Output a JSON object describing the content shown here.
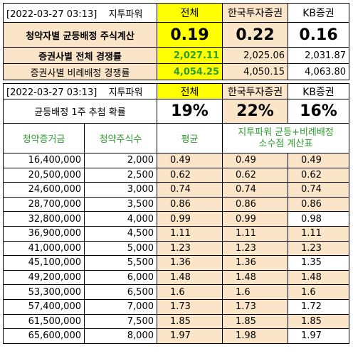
{
  "table1": {
    "timestamp": "[2022-03-27 03:13]",
    "brand": "지투파워",
    "columns": [
      "전체",
      "한국투자증권",
      "KB증권"
    ],
    "rows": [
      {
        "label": "청약자별 균등배정 주식계산",
        "values": [
          "0.19",
          "0.22",
          "0.16"
        ]
      },
      {
        "label": "증권사별 전체 경쟁률",
        "values": [
          "2,027.11",
          "2,025.06",
          "2,031.87"
        ]
      },
      {
        "label": "증권사별 비례배정 경쟁률",
        "values": [
          "4,054.25",
          "4,050.15",
          "4,063.80"
        ]
      }
    ]
  },
  "table2": {
    "timestamp": "[2022-03-27 03:13]",
    "brand": "지투파워",
    "columns": [
      "전체",
      "한국투자증권",
      "KB증권"
    ],
    "prob_label": "균등배정 1주 추첨 확률",
    "prob_values": [
      "19%",
      "22%",
      "16%"
    ],
    "headers": {
      "deposit": "청약증거금",
      "shares": "청약주식수",
      "avg": "평균",
      "calc_line1": "지투파워 균등+비례배정",
      "calc_line2": "소수점 계산표"
    },
    "rows": [
      [
        "16,400,000",
        "2,000",
        "0.49",
        "0.49",
        "0.49"
      ],
      [
        "20,500,000",
        "2,500",
        "0.62",
        "0.62",
        "0.62"
      ],
      [
        "24,600,000",
        "3,000",
        "0.74",
        "0.74",
        "0.74"
      ],
      [
        "28,700,000",
        "3,500",
        "0.86",
        "0.86",
        "0.86"
      ],
      [
        "32,800,000",
        "4,000",
        "0.99",
        "0.99",
        "0.98"
      ],
      [
        "36,900,000",
        "4,500",
        "1.11",
        "1.11",
        "1.11"
      ],
      [
        "41,000,000",
        "5,000",
        "1.23",
        "1.23",
        "1.23"
      ],
      [
        "45,100,000",
        "5,500",
        "1.36",
        "1.36",
        "1.35"
      ],
      [
        "49,200,000",
        "6,000",
        "1.48",
        "1.48",
        "1.48"
      ],
      [
        "53,300,000",
        "6,500",
        "1.6",
        "1.6",
        "1.6"
      ],
      [
        "57,400,000",
        "7,000",
        "1.73",
        "1.73",
        "1.72"
      ],
      [
        "61,500,000",
        "7,500",
        "1.85",
        "1.85",
        "1.85"
      ],
      [
        "65,600,000",
        "8,000",
        "1.97",
        "1.98",
        "1.97"
      ]
    ],
    "white_cells": [
      [
        4,
        4
      ],
      [
        7,
        4
      ],
      [
        10,
        4
      ],
      [
        12,
        4
      ]
    ]
  },
  "colors": {
    "yellow": "#ffff00",
    "peach": "#fbe5c8",
    "green": "#2e9b2e"
  }
}
